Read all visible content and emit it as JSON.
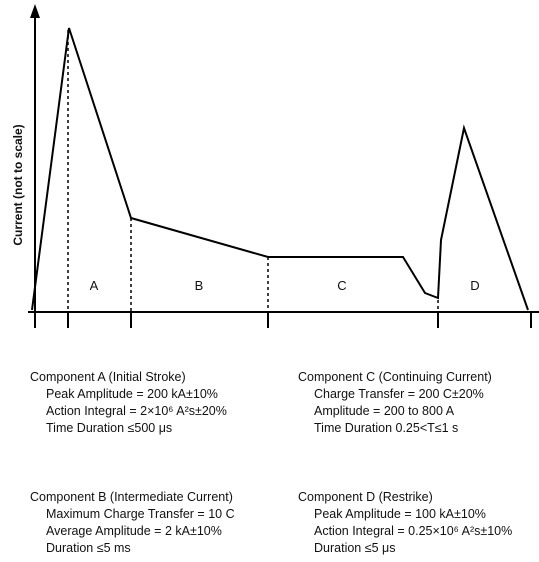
{
  "figure": {
    "ylabel": "Current (not to scale)",
    "segments": [
      "A",
      "B",
      "C",
      "D"
    ]
  },
  "components": [
    {
      "title": "Component A (Initial Stroke)",
      "lines": [
        "Peak Amplitude = 200 kA±10%",
        "Action Integral = 2×10⁶ A²s±20%",
        "Time Duration ≤500 μs"
      ]
    },
    {
      "title": "Component C (Continuing Current)",
      "lines": [
        "Charge Transfer = 200 C±20%",
        "Amplitude = 200 to 800 A",
        "Time Duration 0.25<T≤1 s"
      ]
    },
    {
      "title": "Component B (Intermediate Current)",
      "lines": [
        "Maximum Charge Transfer = 10 C",
        "Average Amplitude = 2 kA±10%",
        "Duration ≤5 ms"
      ]
    },
    {
      "title": "Component D (Restrike)",
      "lines": [
        "Peak Amplitude = 100 kA±10%",
        "Action Integral = 0.25×10⁶ A²s±10%",
        "Duration ≤5 μs"
      ]
    }
  ]
}
